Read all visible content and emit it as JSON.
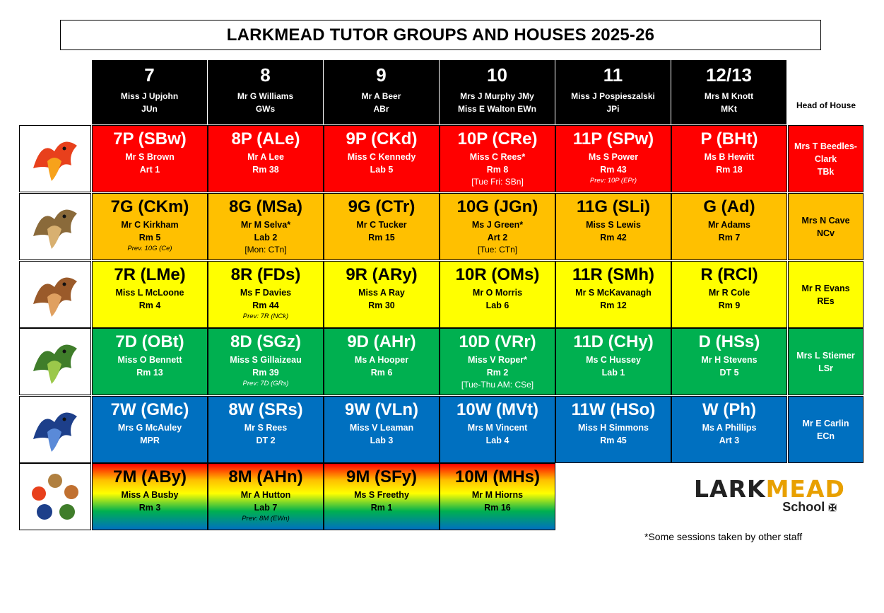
{
  "title": "LARKMEAD TUTOR GROUPS AND HOUSES 2025-26",
  "head_of_house_header": "Head of House",
  "years": [
    {
      "num": "7",
      "line1": "Miss J Upjohn",
      "line2": "JUn"
    },
    {
      "num": "8",
      "line1": "Mr G Williams",
      "line2": "GWs"
    },
    {
      "num": "9",
      "line1": "Mr A Beer",
      "line2": "ABr"
    },
    {
      "num": "10",
      "line1": "Mrs J Murphy  JMy",
      "line2": "Miss E Walton EWn"
    },
    {
      "num": "11",
      "line1": "Miss J Pospieszalski",
      "line2": "JPi"
    },
    {
      "num": "12/13",
      "line1": "Mrs M Knott",
      "line2": "MKt"
    }
  ],
  "houses": [
    {
      "key": "phoenix",
      "icon": "phoenix-icon",
      "color": "#ff0000",
      "head_name": "Mrs T Beedles-Clark",
      "head_code": "TBk",
      "groups": [
        {
          "code": "7P (SBw)",
          "tutor": "Mr S Brown",
          "room": "Art 1",
          "note": "",
          "prev": ""
        },
        {
          "code": "8P (ALe)",
          "tutor": "Mr A Lee",
          "room": "Rm 38",
          "note": "",
          "prev": ""
        },
        {
          "code": "9P (CKd)",
          "tutor": "Miss C Kennedy",
          "room": "Lab 5",
          "note": "",
          "prev": ""
        },
        {
          "code": "10P (CRe)",
          "tutor": "Miss C Rees*",
          "room": "Rm 8",
          "note": "[Tue Fri: SBn]",
          "prev": ""
        },
        {
          "code": "11P (SPw)",
          "tutor": "Ms S Power",
          "room": "Rm 43",
          "note": "",
          "prev": "Prev: 10P (EPr)"
        },
        {
          "code": "P (BHt)",
          "tutor": "Ms B Hewitt",
          "room": "Rm 18",
          "note": "",
          "prev": ""
        }
      ]
    },
    {
      "key": "griffin",
      "icon": "griffin-icon",
      "color": "#ffc000",
      "head_name": "Mrs N Cave",
      "head_code": "NCv",
      "groups": [
        {
          "code": "7G (CKm)",
          "tutor": "Mr C Kirkham",
          "room": "Rm 5",
          "note": "",
          "prev": "Prev. 10G (Ce)"
        },
        {
          "code": "8G (MSa)",
          "tutor": "Mr M Selva*",
          "room": "Lab 2",
          "note": "[Mon: CTn]",
          "prev": ""
        },
        {
          "code": "9G (CTr)",
          "tutor": "Mr C Tucker",
          "room": "Rm 15",
          "note": "",
          "prev": ""
        },
        {
          "code": "10G (JGn)",
          "tutor": "Ms J Green*",
          "room": "Art 2",
          "note": "[Tue: CTn]",
          "prev": ""
        },
        {
          "code": "11G (SLi)",
          "tutor": "Miss S Lewis",
          "room": "Rm 42",
          "note": "",
          "prev": ""
        },
        {
          "code": "G (Ad)",
          "tutor": "Mr Adams",
          "room": "Rm 7",
          "note": "",
          "prev": ""
        }
      ]
    },
    {
      "key": "roc",
      "icon": "roc-eagle-icon",
      "color": "#ffff00",
      "head_name": "Mr R Evans",
      "head_code": "REs",
      "groups": [
        {
          "code": "7R (LMe)",
          "tutor": "Miss L McLoone",
          "room": "Rm 4",
          "note": "",
          "prev": ""
        },
        {
          "code": "8R (FDs)",
          "tutor": "Ms F Davies",
          "room": "Rm 44",
          "note": "",
          "prev": "Prev: 7R (NCk)"
        },
        {
          "code": "9R (ARy)",
          "tutor": "Miss A Ray",
          "room": "Rm 30",
          "note": "",
          "prev": ""
        },
        {
          "code": "10R (OMs)",
          "tutor": "Mr O Morris",
          "room": "Lab 6",
          "note": "",
          "prev": ""
        },
        {
          "code": "11R (SMh)",
          "tutor": "Mr S McKavanagh",
          "room": "Rm 12",
          "note": "",
          "prev": ""
        },
        {
          "code": "R (RCl)",
          "tutor": "Mr R Cole",
          "room": "Rm 9",
          "note": "",
          "prev": ""
        }
      ]
    },
    {
      "key": "dragon",
      "icon": "dragon-icon",
      "color": "#00b050",
      "head_name": "Mrs L Stiemer",
      "head_code": "LSr",
      "groups": [
        {
          "code": "7D (OBt)",
          "tutor": "Miss O Bennett",
          "room": "Rm 13",
          "note": "",
          "prev": ""
        },
        {
          "code": "8D (SGz)",
          "tutor": "Miss S Gillaizeau",
          "room": "Rm 39",
          "note": "",
          "prev": "Prev: 7D (GRs)"
        },
        {
          "code": "9D (AHr)",
          "tutor": "Ms A Hooper",
          "room": "Rm 6",
          "note": "",
          "prev": ""
        },
        {
          "code": "10D (VRr)",
          "tutor": "Miss V Roper*",
          "room": "Rm 2",
          "note": "[Tue-Thu AM: CSe]",
          "prev": ""
        },
        {
          "code": "11D (CHy)",
          "tutor": "Ms C Hussey",
          "room": "Lab 1",
          "note": "",
          "prev": ""
        },
        {
          "code": "D (HSs)",
          "tutor": "Mr H Stevens",
          "room": "DT 5",
          "note": "",
          "prev": ""
        }
      ]
    },
    {
      "key": "wyvern",
      "icon": "wyvern-icon",
      "color": "#0070c0",
      "head_name": "Mr E Carlin",
      "head_code": "ECn",
      "groups": [
        {
          "code": "7W (GMc)",
          "tutor": "Mrs G McAuley",
          "room": "MPR",
          "note": "",
          "prev": ""
        },
        {
          "code": "8W (SRs)",
          "tutor": "Mr S Rees",
          "room": "DT 2",
          "note": "",
          "prev": ""
        },
        {
          "code": "9W (VLn)",
          "tutor": "Miss V Leaman",
          "room": "Lab 3",
          "note": "",
          "prev": ""
        },
        {
          "code": "10W (MVt)",
          "tutor": "Mrs M Vincent",
          "room": "Lab 4",
          "note": "",
          "prev": ""
        },
        {
          "code": "11W (HSo)",
          "tutor": "Miss H Simmons",
          "room": "Rm 45",
          "note": "",
          "prev": ""
        },
        {
          "code": "W (Ph)",
          "tutor": "Ms A Phillips",
          "room": "Art 3",
          "note": "",
          "prev": ""
        }
      ]
    },
    {
      "key": "mixed",
      "icon": "all-houses-creatures-icon",
      "color": "gradient",
      "head_name": "",
      "head_code": "",
      "groups": [
        {
          "code": "7M (ABy)",
          "tutor": "Miss A Busby",
          "room": "Rm 3",
          "note": "",
          "prev": ""
        },
        {
          "code": "8M (AHn)",
          "tutor": "Mr A Hutton",
          "room": "Lab 7",
          "note": "",
          "prev": "Prev: 8M (EWn)"
        },
        {
          "code": "9M (SFy)",
          "tutor": "Ms S Freethy",
          "room": "Rm 1",
          "note": "",
          "prev": ""
        },
        {
          "code": "10M (MHs)",
          "tutor": "Mr M Hiorns",
          "room": "Rm 16",
          "note": "",
          "prev": ""
        }
      ]
    }
  ],
  "logo": {
    "word_a": "LARK",
    "word_b": "MEAD",
    "sub": "School"
  },
  "footnote": "*Some sessions taken by other staff"
}
